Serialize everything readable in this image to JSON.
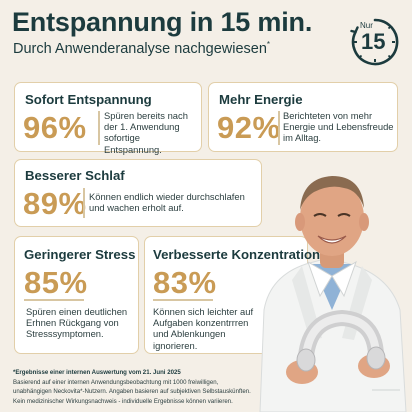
{
  "header": {
    "title": "Entspannung in 15 min.",
    "subtitle": "Durch Anwenderanalyse nachgewiesen",
    "subtitle_mark": "*"
  },
  "timer": {
    "label": "Nur",
    "value": "15",
    "icon": "stopwatch-icon"
  },
  "cards": [
    {
      "title": "Sofort Entspannung",
      "stat": "96%",
      "description": "Spüren bereits nach der 1. Anwendung sofortige Entspannung."
    },
    {
      "title": "Mehr Energie",
      "stat": "92%",
      "description": "Berichteten von mehr Energie und Lebensfreude im Alltag."
    },
    {
      "title": "Besserer Schlaf",
      "stat": "89%",
      "description": "Können endlich wieder durchschlafen und wachen erholt auf."
    },
    {
      "title": "Geringerer Stress",
      "stat": "85%",
      "description": "Spüren einen deutlichen Erhnen Rückgang von Stresssymptomen."
    },
    {
      "title": "Verbesserte Konzentration",
      "stat": "83%",
      "description": "Können sich leichter auf Aufgaben konzentrrren und Ablenkungen ignorieren."
    }
  ],
  "footnote": {
    "line1": "*Ergebnisse einer internen Auswertung vom 21. Juni 2025",
    "line2": "Basierend auf einer internen Anwendungsbeobachtung mit 1000 freiwilligen,",
    "line3": "unabhängigen Neckovita*-Nutzern. Angaben basieren auf subjektiven Selbstauskünften.",
    "line4": "Kein medizinischer Wirkungsnachweis - individuelle Ergebnisse können variieren."
  },
  "colors": {
    "background": "#f4efe7",
    "accent_gold": "#c99b55",
    "card_border": "#e2cfa9",
    "text_dark": "#1c3b3e"
  }
}
